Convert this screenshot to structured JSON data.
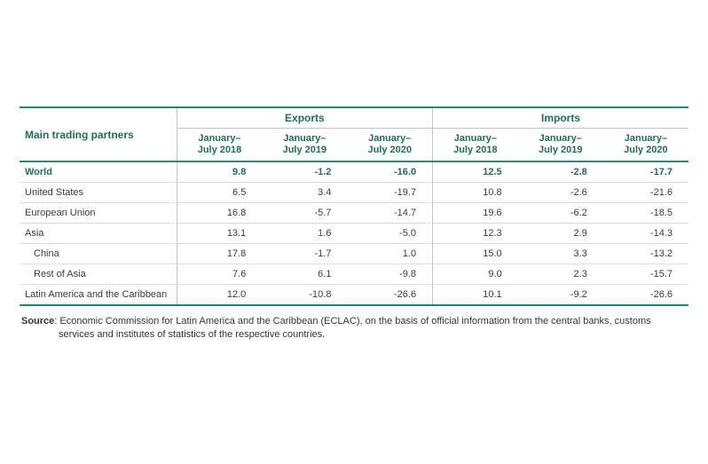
{
  "table": {
    "main_col_header": "Main trading partners",
    "group_headers": [
      "Exports",
      "Imports"
    ],
    "sub_headers": [
      "January–\nJuly 2018",
      "January–\nJuly 2019",
      "January–\nJuly 2020",
      "January–\nJuly 2018",
      "January–\nJuly 2019",
      "January–\nJuly 2020"
    ],
    "rows": [
      {
        "label": "World",
        "world": true,
        "indent": false,
        "values": [
          "9.8",
          "-1.2",
          "-16.0",
          "12.5",
          "-2.8",
          "-17.7"
        ]
      },
      {
        "label": "United States",
        "world": false,
        "indent": false,
        "values": [
          "6.5",
          "3.4",
          "-19.7",
          "10.8",
          "-2.6",
          "-21.6"
        ]
      },
      {
        "label": "European Union",
        "world": false,
        "indent": false,
        "values": [
          "16.8",
          "-5.7",
          "-14.7",
          "19.6",
          "-6.2",
          "-18.5"
        ]
      },
      {
        "label": "Asia",
        "world": false,
        "indent": false,
        "values": [
          "13.1",
          "1.6",
          "-5.0",
          "12.3",
          "2.9",
          "-14.3"
        ]
      },
      {
        "label": "China",
        "world": false,
        "indent": true,
        "values": [
          "17.8",
          "-1.7",
          "1.0",
          "15.0",
          "3.3",
          "-13.2"
        ]
      },
      {
        "label": "Rest of Asia",
        "world": false,
        "indent": true,
        "values": [
          "7.6",
          "6.1",
          "-9.8",
          "9.0",
          "2.3",
          "-15.7"
        ]
      },
      {
        "label": "Latin America and the Caribbean",
        "world": false,
        "indent": false,
        "values": [
          "12.0",
          "-10.8",
          "-26.6",
          "10.1",
          "-9.2",
          "-26.6"
        ]
      }
    ],
    "column_widths_pct": [
      23.5,
      12.75,
      12.75,
      12.75,
      12.75,
      12.75,
      12.75
    ],
    "colors": {
      "accent": "#1f8a6f",
      "accent_text": "#1f6d5a",
      "rule_light": "#d7e0dc",
      "rule_mid": "#b9c9c3",
      "text": "#3a3a3a",
      "background": "#ffffff"
    }
  },
  "source": {
    "label": "Source",
    "text": ": Economic Commission for Latin America and the Caribbean (ECLAC), on the basis of official information from the central banks, customs services and institutes of statistics of the respective countries."
  }
}
